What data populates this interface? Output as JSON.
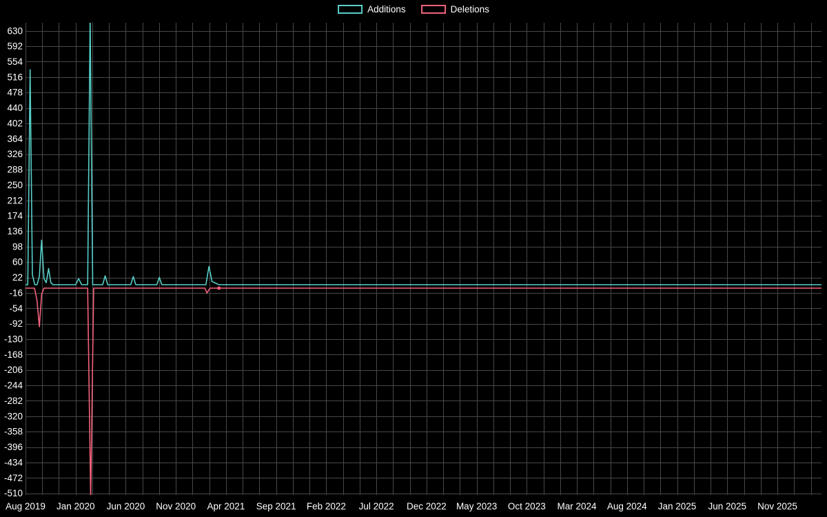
{
  "legend": {
    "items": [
      {
        "label": "Additions",
        "color": "#58cfc9"
      },
      {
        "label": "Deletions",
        "color": "#f4627d"
      }
    ]
  },
  "chart_data": {
    "type": "line",
    "title": "",
    "xlabel": "",
    "ylabel": "",
    "background_color": "#000000",
    "grid": "on",
    "grid_color": "#484848",
    "text_color": "#ffffff",
    "legend_position": "top-center",
    "x_axis": {
      "unit": "months since Aug 2019",
      "tick_labels": [
        "Aug 2019",
        "Jan 2020",
        "Jun 2020",
        "Nov 2020",
        "Apr 2021",
        "Sep 2021",
        "Feb 2022",
        "Jul 2022",
        "Dec 2022",
        "May 2023",
        "Oct 2023",
        "Mar 2024",
        "Aug 2024",
        "Jan 2025",
        "Jun 2025",
        "Nov 2025"
      ],
      "tick_months": [
        0,
        5,
        10,
        15,
        20,
        25,
        30,
        35,
        40,
        45,
        50,
        55,
        60,
        65,
        70,
        75
      ],
      "grid_step_months": 1.6667
    },
    "y_axis": {
      "tick_values": [
        630,
        592,
        554,
        516,
        478,
        440,
        402,
        364,
        326,
        288,
        250,
        212,
        174,
        136,
        98,
        60,
        22,
        -16,
        -54,
        -92,
        -130,
        -168,
        -206,
        -244,
        -282,
        -320,
        -358,
        -396,
        -434,
        -472,
        -510
      ]
    },
    "ylim": [
      -514,
      650
    ],
    "xlim_months": [
      0,
      79.4
    ],
    "series": [
      {
        "name": "Additions",
        "color": "#58cfc9",
        "pixel_dy": -2.5,
        "points": [
          [
            0,
            0
          ],
          [
            0.23,
            0
          ],
          [
            0.46,
            530
          ],
          [
            0.69,
            25
          ],
          [
            0.92,
            0
          ],
          [
            1.15,
            0
          ],
          [
            1.38,
            20
          ],
          [
            1.61,
            110
          ],
          [
            1.84,
            15
          ],
          [
            2.07,
            5
          ],
          [
            2.3,
            40
          ],
          [
            2.53,
            5
          ],
          [
            2.76,
            0
          ],
          [
            5.0,
            0
          ],
          [
            5.3,
            15
          ],
          [
            5.6,
            0
          ],
          [
            6.2,
            0
          ],
          [
            6.45,
            660
          ],
          [
            6.7,
            0
          ],
          [
            7.7,
            0
          ],
          [
            7.95,
            22
          ],
          [
            8.2,
            0
          ],
          [
            10.5,
            0
          ],
          [
            10.75,
            20
          ],
          [
            11.0,
            0
          ],
          [
            13.1,
            0
          ],
          [
            13.35,
            18
          ],
          [
            13.6,
            0
          ],
          [
            18.0,
            0
          ],
          [
            18.3,
            45
          ],
          [
            18.6,
            8
          ],
          [
            19.3,
            0
          ],
          [
            79.4,
            0
          ]
        ]
      },
      {
        "name": "Deletions",
        "color": "#f4627d",
        "pixel_dy": 2.5,
        "marker": [
          19.3,
          0
        ],
        "points": [
          [
            0,
            0
          ],
          [
            0.9,
            0
          ],
          [
            1.15,
            -30
          ],
          [
            1.38,
            -95
          ],
          [
            1.61,
            -15
          ],
          [
            1.84,
            0
          ],
          [
            6.2,
            0
          ],
          [
            6.5,
            -520
          ],
          [
            6.8,
            0
          ],
          [
            17.9,
            0
          ],
          [
            18.1,
            -12
          ],
          [
            18.4,
            0
          ],
          [
            19.3,
            0
          ],
          [
            79.4,
            0
          ]
        ]
      }
    ]
  }
}
